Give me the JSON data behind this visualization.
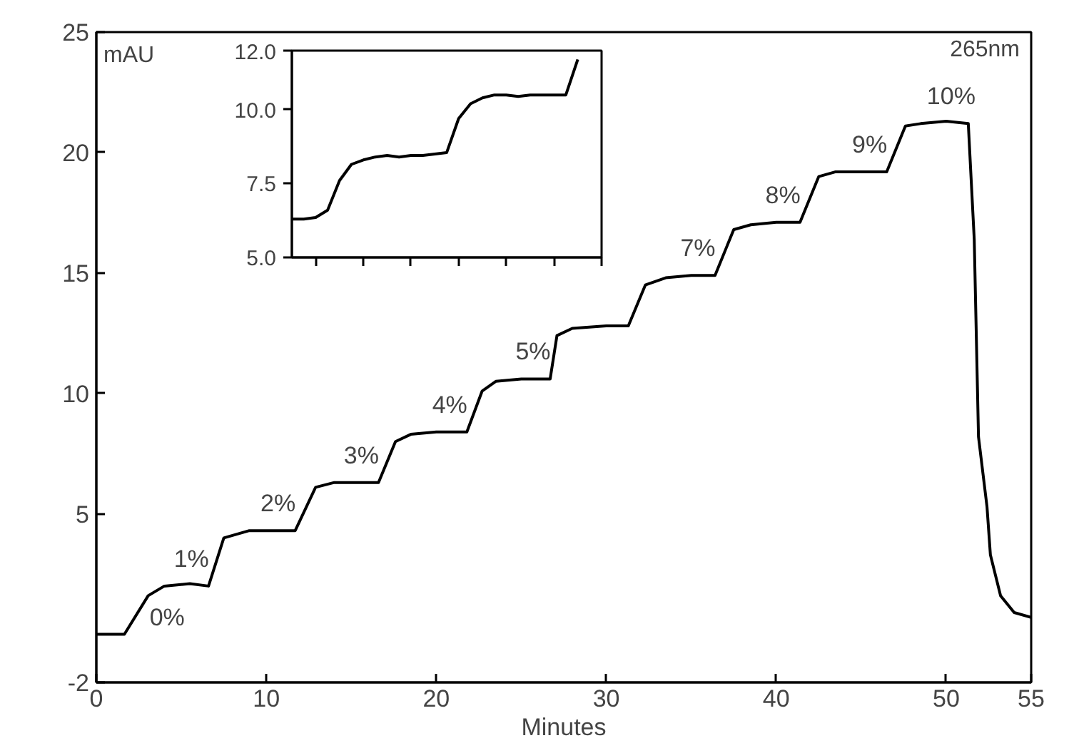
{
  "chart_data": [
    {
      "type": "line",
      "xlabel": "Minutes",
      "ylabel": "mAU",
      "xlim": [
        0,
        55
      ],
      "ylim": [
        -2,
        25
      ],
      "xticks": [
        0,
        10,
        20,
        30,
        40,
        50,
        55
      ],
      "yticks": [
        -2,
        5,
        10,
        15,
        20,
        25
      ],
      "grid": false,
      "color": "#000000",
      "x": [
        0,
        1.65,
        3.05,
        4,
        5.5,
        6.6,
        7.5,
        9,
        10.5,
        11.7,
        12.9,
        14,
        15.5,
        16.6,
        17.6,
        18.5,
        20,
        21.8,
        22.7,
        23.5,
        25,
        26.7,
        27.1,
        28,
        30,
        31.3,
        32.3,
        33.5,
        35,
        36.4,
        37.5,
        38.5,
        40,
        41.4,
        42.5,
        43.5,
        45,
        46.5,
        47.6,
        48.5,
        50,
        51.3,
        51.65,
        51.9,
        52.4,
        52.6,
        53.2,
        54,
        55
      ],
      "values": [
        0,
        0,
        1.6,
        2,
        2.1,
        2,
        4,
        4.3,
        4.3,
        4.3,
        6.1,
        6.3,
        6.3,
        6.3,
        8,
        8.3,
        8.4,
        8.4,
        10.1,
        10.5,
        10.6,
        10.6,
        12.4,
        12.7,
        12.8,
        12.8,
        14.5,
        14.8,
        14.9,
        14.9,
        16.8,
        17,
        17.1,
        17.1,
        19,
        19.2,
        19.2,
        19.2,
        21.1,
        21.2,
        21.3,
        21.2,
        16.4,
        8.2,
        5.3,
        3.3,
        1.6,
        0.9,
        0.7
      ],
      "annotations": [
        {
          "text": "0%",
          "x": 4,
          "y": 2
        },
        {
          "text": "1%",
          "x": 6.6,
          "y": 2
        },
        {
          "text": "2%",
          "x": 11.7,
          "y": 4.3
        },
        {
          "text": "3%",
          "x": 16.6,
          "y": 6.3
        },
        {
          "text": "4%",
          "x": 21.8,
          "y": 8.4
        },
        {
          "text": "5%",
          "x": 26.7,
          "y": 10.6
        },
        {
          "text": "7%",
          "x": 36.4,
          "y": 14.9
        },
        {
          "text": "8%",
          "x": 41.4,
          "y": 17.1
        },
        {
          "text": "9%",
          "x": 46.5,
          "y": 19.2
        },
        {
          "text": "10%",
          "x": 51.3,
          "y": 21.2
        },
        "265nm"
      ]
    },
    {
      "type": "line",
      "ylim": [
        5,
        12
      ],
      "tick_labels": "y",
      "color": "#000000",
      "categories": [
        null,
        null,
        null,
        null,
        null,
        null,
        null,
        null,
        null,
        null,
        null,
        null,
        null,
        null,
        null,
        null,
        null,
        null,
        null,
        null,
        null,
        null,
        null,
        null,
        null,
        null,
        null
      ],
      "yticks": [
        {
          "value": 5,
          "label": "5.0"
        },
        {
          "value": 7.5,
          "label": "7.5"
        },
        {
          "value": 10,
          "label": "10.0"
        },
        {
          "value": 12,
          "label": "12.0"
        }
      ],
      "values": [
        6.3,
        6.3,
        6.35,
        6.6,
        7.6,
        8.15,
        8.3,
        8.4,
        8.45,
        8.4,
        8.45,
        8.45,
        8.5,
        8.55,
        9.7,
        10.2,
        10.4,
        10.5,
        10.5,
        10.45,
        10.5,
        10.5,
        10.5,
        10.5,
        11.7,
        null,
        null
      ]
    }
  ]
}
